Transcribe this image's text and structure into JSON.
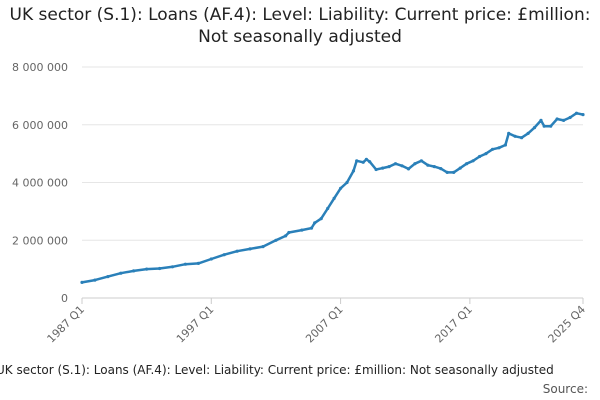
{
  "chart_data": {
    "type": "line",
    "title": "UK sector (S.1): Loans (AF.4): Level: Liability: Current price: £million: Not seasonally adjusted",
    "xlabel": "",
    "ylabel": "",
    "x_range": [
      "1987 Q1",
      "2025 Q4"
    ],
    "ylim": [
      0,
      8000000
    ],
    "y_ticks": [
      {
        "value": 0,
        "label": "0"
      },
      {
        "value": 2000000,
        "label": "2 000 000"
      },
      {
        "value": 4000000,
        "label": "4 000 000"
      },
      {
        "value": 6000000,
        "label": "6 000 000"
      },
      {
        "value": 8000000,
        "label": "8 000 000"
      }
    ],
    "x_ticks": [
      "1987 Q1",
      "1997 Q1",
      "2007 Q1",
      "2017 Q1",
      "2025 Q4"
    ],
    "grid": true,
    "legend": "bottom",
    "series": [
      {
        "name": "UK sector (S.1): Loans (AF.4): Level: Liability: Current price: £million: Not seasonally adjusted",
        "color": "#2a80b9",
        "points": [
          [
            "1987 Q1",
            540000
          ],
          [
            "1988 Q1",
            620000
          ],
          [
            "1989 Q1",
            740000
          ],
          [
            "1990 Q1",
            860000
          ],
          [
            "1991 Q1",
            940000
          ],
          [
            "1992 Q1",
            1000000
          ],
          [
            "1993 Q1",
            1020000
          ],
          [
            "1994 Q1",
            1080000
          ],
          [
            "1995 Q1",
            1170000
          ],
          [
            "1996 Q1",
            1200000
          ],
          [
            "1997 Q1",
            1350000
          ],
          [
            "1998 Q1",
            1500000
          ],
          [
            "1999 Q1",
            1620000
          ],
          [
            "2000 Q1",
            1700000
          ],
          [
            "2001 Q1",
            1780000
          ],
          [
            "2002 Q1",
            2000000
          ],
          [
            "2002 Q4",
            2150000
          ],
          [
            "2003 Q1",
            2270000
          ],
          [
            "2004 Q1",
            2350000
          ],
          [
            "2004 Q4",
            2420000
          ],
          [
            "2005 Q1",
            2600000
          ],
          [
            "2005 Q3",
            2750000
          ],
          [
            "2006 Q1",
            3100000
          ],
          [
            "2006 Q3",
            3450000
          ],
          [
            "2007 Q1",
            3800000
          ],
          [
            "2007 Q3",
            4000000
          ],
          [
            "2008 Q1",
            4400000
          ],
          [
            "2008 Q2",
            4750000
          ],
          [
            "2008 Q4",
            4700000
          ],
          [
            "2009 Q1",
            4800000
          ],
          [
            "2009 Q2",
            4720000
          ],
          [
            "2009 Q4",
            4450000
          ],
          [
            "2010 Q2",
            4500000
          ],
          [
            "2010 Q4",
            4550000
          ],
          [
            "2011 Q2",
            4650000
          ],
          [
            "2011 Q4",
            4580000
          ],
          [
            "2012 Q2",
            4470000
          ],
          [
            "2012 Q4",
            4650000
          ],
          [
            "2013 Q2",
            4750000
          ],
          [
            "2013 Q4",
            4600000
          ],
          [
            "2014 Q2",
            4550000
          ],
          [
            "2014 Q4",
            4480000
          ],
          [
            "2015 Q2",
            4350000
          ],
          [
            "2015 Q4",
            4350000
          ],
          [
            "2016 Q2",
            4500000
          ],
          [
            "2016 Q4",
            4650000
          ],
          [
            "2017 Q2",
            4750000
          ],
          [
            "2017 Q4",
            4900000
          ],
          [
            "2018 Q2",
            5000000
          ],
          [
            "2018 Q4",
            5150000
          ],
          [
            "2019 Q2",
            5200000
          ],
          [
            "2019 Q4",
            5300000
          ],
          [
            "2020 Q1",
            5700000
          ],
          [
            "2020 Q3",
            5600000
          ],
          [
            "2021 Q1",
            5550000
          ],
          [
            "2021 Q3",
            5700000
          ],
          [
            "2022 Q1",
            5900000
          ],
          [
            "2022 Q3",
            6150000
          ],
          [
            "2022 Q4",
            5950000
          ],
          [
            "2023 Q2",
            5950000
          ],
          [
            "2023 Q4",
            6200000
          ],
          [
            "2024 Q2",
            6150000
          ],
          [
            "2024 Q4",
            6250000
          ],
          [
            "2025 Q2",
            6400000
          ],
          [
            "2025 Q4",
            6350000
          ]
        ]
      }
    ],
    "source_label": "Source:"
  }
}
